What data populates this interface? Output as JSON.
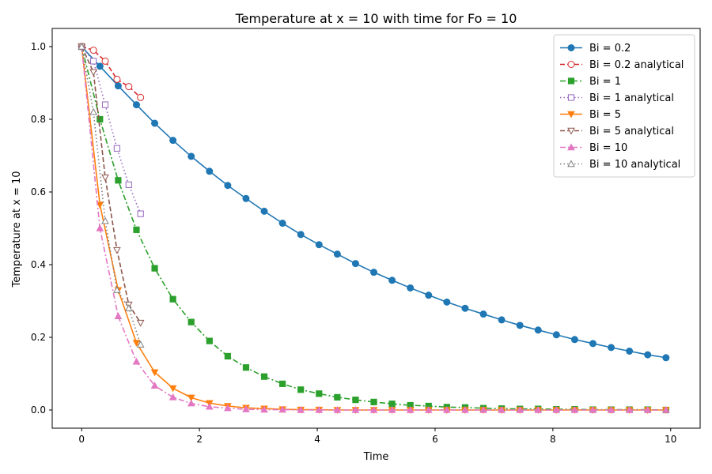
{
  "chart_data": {
    "type": "line",
    "title": "Temperature at x = 10 with time for Fo = 10",
    "xlabel": "Time",
    "ylabel": "Temperature at x = 10",
    "xlim": [
      -0.5,
      10.5
    ],
    "ylim": [
      -0.05,
      1.05
    ],
    "xticks": [
      0,
      2,
      4,
      6,
      8,
      10
    ],
    "xtick_labels": [
      "0",
      "2",
      "4",
      "6",
      "8",
      "10"
    ],
    "yticks": [
      0.0,
      0.2,
      0.4,
      0.6,
      0.8,
      1.0
    ],
    "ytick_labels": [
      "0.0",
      "0.2",
      "0.4",
      "0.6",
      "0.8",
      "1.0"
    ],
    "grid": false,
    "legend_position": "top-right",
    "series": [
      {
        "name": "Bi = 0.2",
        "color": "#1f77b4",
        "linestyle": "solid",
        "marker": "circle",
        "fill": true,
        "x": [
          0,
          0.31,
          0.62,
          0.93,
          1.24,
          1.55,
          1.86,
          2.17,
          2.48,
          2.79,
          3.1,
          3.41,
          3.72,
          4.03,
          4.34,
          4.65,
          4.96,
          5.27,
          5.58,
          5.89,
          6.2,
          6.51,
          6.82,
          7.13,
          7.44,
          7.75,
          8.06,
          8.37,
          8.68,
          8.99,
          9.3,
          9.61,
          9.92
        ],
        "y": [
          1.0,
          0.946,
          0.892,
          0.84,
          0.789,
          0.742,
          0.698,
          0.657,
          0.618,
          0.582,
          0.547,
          0.514,
          0.483,
          0.455,
          0.429,
          0.403,
          0.379,
          0.357,
          0.336,
          0.316,
          0.297,
          0.28,
          0.264,
          0.248,
          0.233,
          0.22,
          0.207,
          0.194,
          0.183,
          0.172,
          0.162,
          0.152,
          0.144
        ]
      },
      {
        "name": "Bi = 0.2 analytical",
        "color": "#d62728",
        "linestyle": "dashed",
        "marker": "circle",
        "fill": false,
        "x": [
          0,
          0.2,
          0.4,
          0.6,
          0.8,
          1.0
        ],
        "y": [
          1.0,
          0.99,
          0.96,
          0.91,
          0.89,
          0.86
        ]
      },
      {
        "name": "Bi = 1",
        "color": "#2ca02c",
        "linestyle": "dashdot",
        "marker": "square",
        "fill": true,
        "x": [
          0,
          0.31,
          0.62,
          0.93,
          1.24,
          1.55,
          1.86,
          2.17,
          2.48,
          2.79,
          3.1,
          3.41,
          3.72,
          4.03,
          4.34,
          4.65,
          4.96,
          5.27,
          5.58,
          5.89,
          6.2,
          6.51,
          6.82,
          7.13,
          7.44,
          7.75,
          8.06,
          8.37,
          8.68,
          8.99,
          9.3,
          9.61,
          9.92
        ],
        "y": [
          1.0,
          0.8,
          0.632,
          0.496,
          0.39,
          0.305,
          0.242,
          0.19,
          0.148,
          0.117,
          0.092,
          0.072,
          0.056,
          0.045,
          0.035,
          0.028,
          0.022,
          0.017,
          0.013,
          0.011,
          0.008,
          0.007,
          0.005,
          0.004,
          0.003,
          0.003,
          0.002,
          0.002,
          0.001,
          0.001,
          0.001,
          0.001,
          0.0
        ]
      },
      {
        "name": "Bi = 1 analytical",
        "color": "#9467bd",
        "linestyle": "dotted",
        "marker": "square",
        "fill": false,
        "x": [
          0,
          0.2,
          0.4,
          0.6,
          0.8,
          1.0
        ],
        "y": [
          1.0,
          0.96,
          0.84,
          0.72,
          0.62,
          0.54
        ]
      },
      {
        "name": "Bi = 5",
        "color": "#ff7f0e",
        "linestyle": "solid",
        "marker": "triangle-down",
        "fill": true,
        "x": [
          0,
          0.31,
          0.62,
          0.93,
          1.24,
          1.55,
          1.86,
          2.17,
          2.48,
          2.79,
          3.1,
          3.41,
          3.72,
          4.03,
          4.34,
          4.65,
          4.96,
          5.27,
          5.58,
          5.89,
          6.2,
          6.51,
          6.82,
          7.13,
          7.44,
          7.75,
          8.06,
          8.37,
          8.68,
          8.99,
          9.3,
          9.61,
          9.92
        ],
        "y": [
          1.0,
          0.565,
          0.33,
          0.185,
          0.104,
          0.06,
          0.034,
          0.019,
          0.011,
          0.006,
          0.004,
          0.002,
          0.001,
          0.001,
          0.0,
          0.0,
          0.0,
          0.0,
          0.0,
          0.0,
          0.0,
          0.0,
          0.0,
          0.0,
          0.0,
          0.0,
          0.0,
          0.0,
          0.0,
          0.0,
          0.0,
          0.0,
          0.0
        ]
      },
      {
        "name": "Bi = 5 analytical",
        "color": "#8c564b",
        "linestyle": "dashed",
        "marker": "triangle-down",
        "fill": false,
        "x": [
          0,
          0.2,
          0.4,
          0.6,
          0.8,
          1.0
        ],
        "y": [
          1.0,
          0.93,
          0.64,
          0.44,
          0.29,
          0.24
        ]
      },
      {
        "name": "Bi = 10",
        "color": "#e377c2",
        "linestyle": "dashdot",
        "marker": "triangle-up",
        "fill": true,
        "x": [
          0,
          0.31,
          0.62,
          0.93,
          1.24,
          1.55,
          1.86,
          2.17,
          2.48,
          2.79,
          3.1,
          3.41,
          3.72,
          4.03,
          4.34,
          4.65,
          4.96,
          5.27,
          5.58,
          5.89,
          6.2,
          6.51,
          6.82,
          7.13,
          7.44,
          7.75,
          8.06,
          8.37,
          8.68,
          8.99,
          9.3,
          9.61,
          9.92
        ],
        "y": [
          1.0,
          0.5,
          0.258,
          0.133,
          0.067,
          0.035,
          0.018,
          0.009,
          0.005,
          0.002,
          0.001,
          0.001,
          0.0,
          0.0,
          0.0,
          0.0,
          0.0,
          0.0,
          0.0,
          0.0,
          0.0,
          0.0,
          0.0,
          0.0,
          0.0,
          0.0,
          0.0,
          0.0,
          0.0,
          0.0,
          0.0,
          0.0,
          0.0
        ]
      },
      {
        "name": "Bi = 10 analytical",
        "color": "#7f7f7f",
        "linestyle": "dotted",
        "marker": "triangle-up",
        "fill": false,
        "x": [
          0,
          0.2,
          0.4,
          0.6,
          0.8,
          1.0
        ],
        "y": [
          1.0,
          0.82,
          0.52,
          0.33,
          0.28,
          0.18
        ]
      }
    ]
  }
}
